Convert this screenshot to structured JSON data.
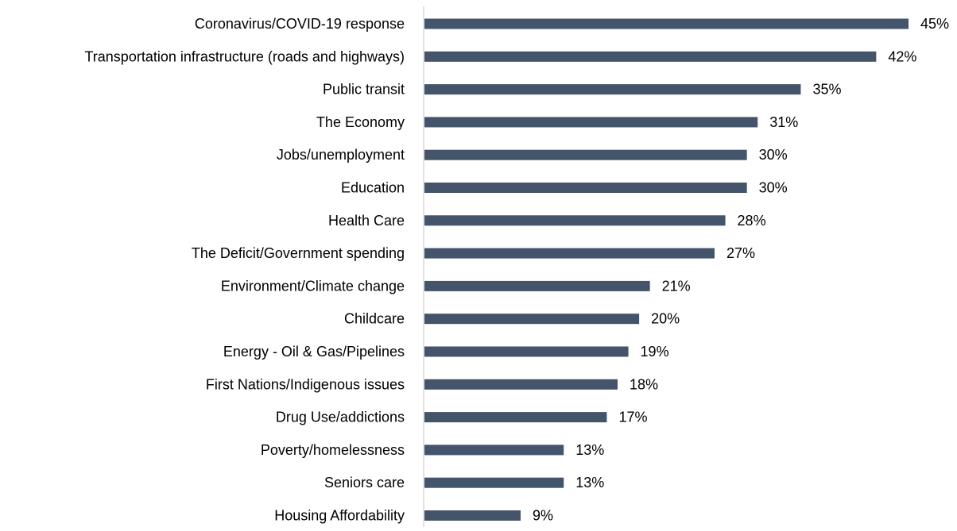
{
  "chart_data": {
    "type": "bar",
    "orientation": "horizontal",
    "categories": [
      "Coronavirus/COVID-19 response",
      "Transportation infrastructure (roads and highways)",
      "Public transit",
      "The Economy",
      "Jobs/unemployment",
      "Education",
      "Health Care",
      "The Deficit/Government spending",
      "Environment/Climate change",
      "Childcare",
      "Energy - Oil & Gas/Pipelines",
      "First Nations/Indigenous issues",
      "Drug Use/addictions",
      "Poverty/homelessness",
      "Seniors care",
      "Housing Affordability"
    ],
    "values": [
      45,
      42,
      35,
      31,
      30,
      30,
      28,
      27,
      21,
      20,
      19,
      18,
      17,
      13,
      13,
      9
    ],
    "value_labels": [
      "45%",
      "42%",
      "35%",
      "31%",
      "30%",
      "30%",
      "28%",
      "27%",
      "21%",
      "20%",
      "19%",
      "18%",
      "17%",
      "13%",
      "13%",
      "9%"
    ],
    "value_unit": "%",
    "xlim": [
      0,
      45
    ],
    "grid": false,
    "legend": "none",
    "bar_color": "#44546a",
    "axis_color": "#d9d9d9",
    "text_color": "#000000"
  }
}
